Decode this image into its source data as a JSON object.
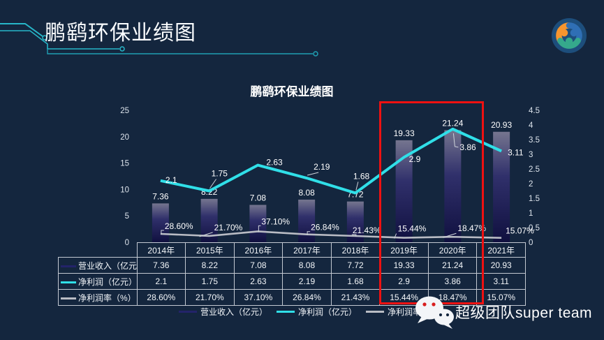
{
  "page": {
    "background": "#14263e",
    "accent_cyan": "#27b6c8",
    "highlight_red": "#ee1111"
  },
  "header": {
    "title": "鹏鹞环保业绩图"
  },
  "icons": {
    "logo": "team-swirl-logo",
    "wechat": "wechat-icon"
  },
  "chart_data": {
    "type": "combo_bar_line",
    "title": "鹏鹞环保业绩图",
    "categories": [
      "2014年",
      "2015年",
      "2016年",
      "2017年",
      "2018年",
      "2019年",
      "2020年",
      "2021年"
    ],
    "series": [
      {
        "name": "营业收入（亿元）",
        "chart": "bar",
        "axis": "left",
        "values": [
          7.36,
          8.22,
          7.08,
          8.08,
          7.72,
          19.33,
          21.24,
          20.93
        ],
        "labels": [
          "7.36",
          "8.22",
          "7.08",
          "8.08",
          "7.72",
          "19.33",
          "21.24",
          "20.93"
        ],
        "color": "#23236a"
      },
      {
        "name": "净利润（亿元）",
        "chart": "line",
        "axis": "right",
        "values": [
          2.1,
          1.75,
          2.63,
          2.19,
          1.68,
          2.9,
          3.86,
          3.11
        ],
        "labels": [
          "2.1",
          "1.75",
          "2.63",
          "2.19",
          "1.68",
          "2.9",
          "3.86",
          "3.11"
        ],
        "color": "#30dfe8"
      },
      {
        "name": "净利润率（%）",
        "chart": "line",
        "axis": "right_percent_as_fraction",
        "values": [
          28.6,
          21.7,
          37.1,
          26.84,
          21.43,
          15.44,
          18.47,
          15.07
        ],
        "labels": [
          "28.60%",
          "21.70%",
          "37.10%",
          "26.84%",
          "21.43%",
          "15.44%",
          "18.47%",
          "15.07%"
        ],
        "color": "#b9bcc4"
      }
    ],
    "axes": {
      "left": {
        "ticks": [
          "0",
          "5",
          "10",
          "15",
          "20",
          "25"
        ],
        "max": 25
      },
      "right": {
        "ticks": [
          "0",
          "0.5",
          "1",
          "1.5",
          "2",
          "2.5",
          "3",
          "3.5",
          "4",
          "4.5"
        ],
        "max": 4.5
      }
    },
    "grid": false,
    "legend_position": "bottom",
    "highlighted_categories": [
      "2019年",
      "2020年"
    ]
  },
  "branding": {
    "text": "超级团队super team"
  }
}
